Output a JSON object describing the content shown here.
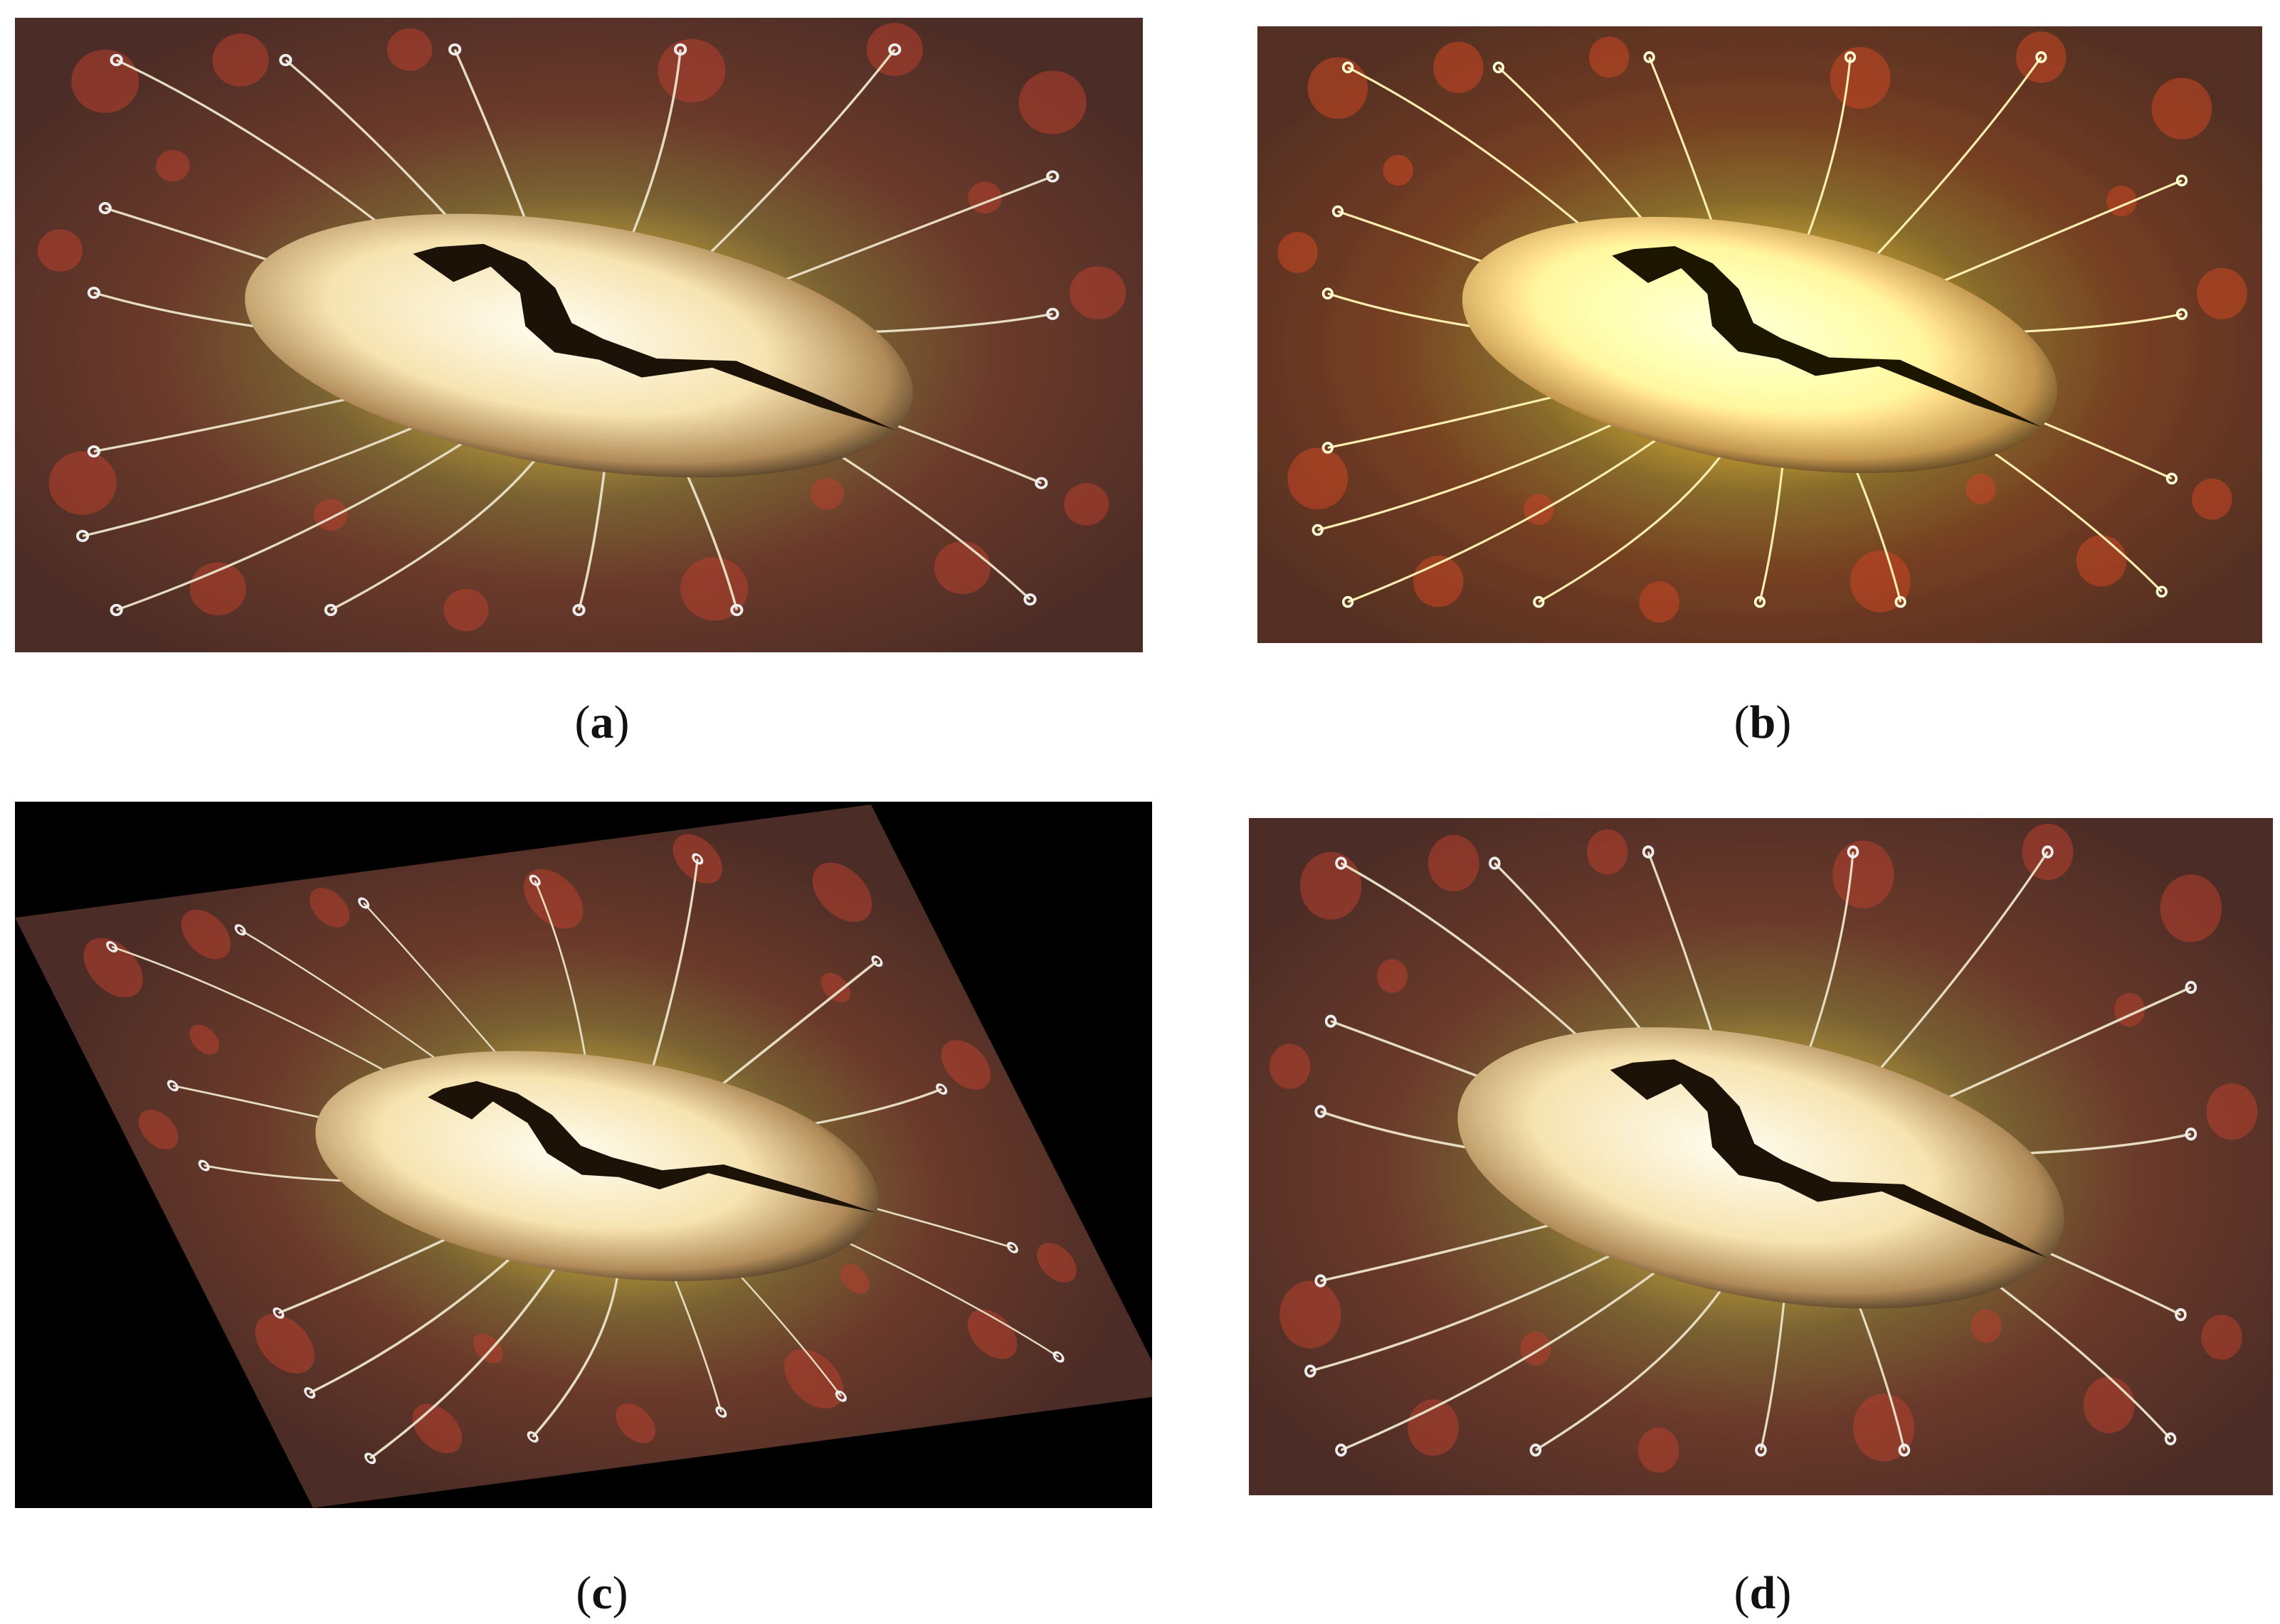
{
  "figure": {
    "panels": [
      {
        "caption": [
          "(",
          "a",
          ")"
        ]
      },
      {
        "caption": [
          "(",
          "b",
          ")"
        ]
      },
      {
        "caption": [
          "(",
          "c",
          ")"
        ]
      },
      {
        "caption": [
          "(",
          "d",
          ")"
        ]
      }
    ]
  }
}
